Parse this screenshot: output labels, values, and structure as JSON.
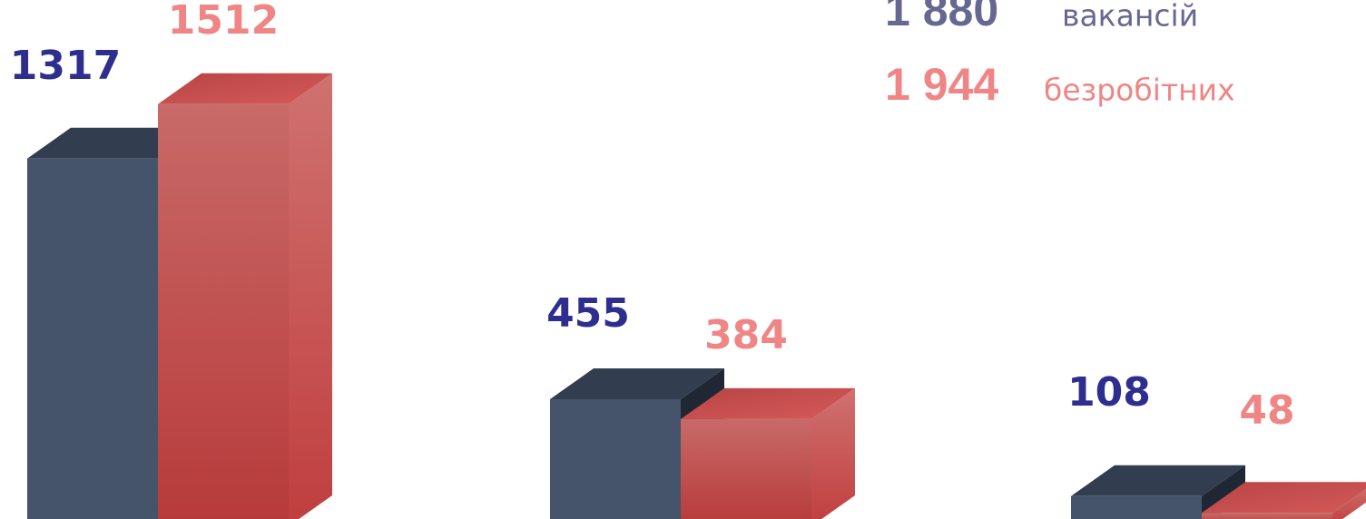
{
  "chart_data": {
    "type": "bar3d",
    "categories": [
      null,
      null,
      null
    ],
    "series": [
      {
        "name": "вакансій",
        "total_label": "1 880",
        "color": "#45546a",
        "label_color": "#2e2e8f",
        "legend_color": "#676891",
        "values": [
          1317,
          455,
          108
        ]
      },
      {
        "name": "безробітних",
        "total_label": "1 944",
        "color": "#c94848",
        "label_color": "#f08585",
        "legend_color": "#f08585",
        "values": [
          1512,
          384,
          48
        ]
      }
    ]
  }
}
